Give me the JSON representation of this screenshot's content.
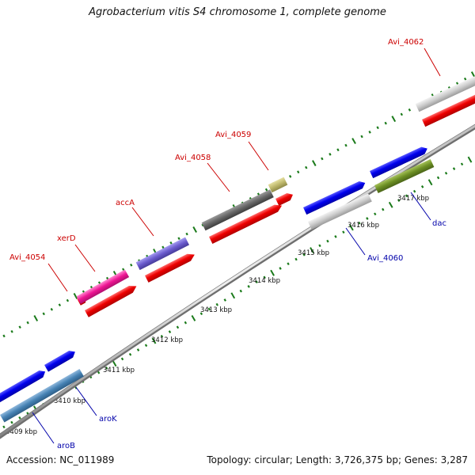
{
  "header": {
    "title": "Agrobacterium vitis S4 chromosome 1, complete genome"
  },
  "footer": {
    "accession": "Accession: NC_011989",
    "summary": "Topology: circular; Length: 3,726,375 bp; Genes: 3,287"
  },
  "ruler": {
    "labels": [
      "3409 kbp",
      "3410 kbp",
      "3411 kbp",
      "3412 kbp",
      "3413 kbp",
      "3414 kbp",
      "3415 kbp",
      "3416 kbp",
      "3417 kbp"
    ]
  },
  "genes": {
    "top": [
      "Avi_4054",
      "xerD",
      "accA",
      "Avi_4058",
      "Avi_4059",
      "Avi_4062"
    ],
    "bottom": [
      "aroB",
      "aroK",
      "Avi_4060",
      "dac"
    ]
  },
  "colors": {
    "label_top": "#cc0000",
    "label_bottom": "#0000aa",
    "cds": "#ee0000",
    "forward_gene": "#0000ee",
    "tick": "#1a7a1a"
  }
}
